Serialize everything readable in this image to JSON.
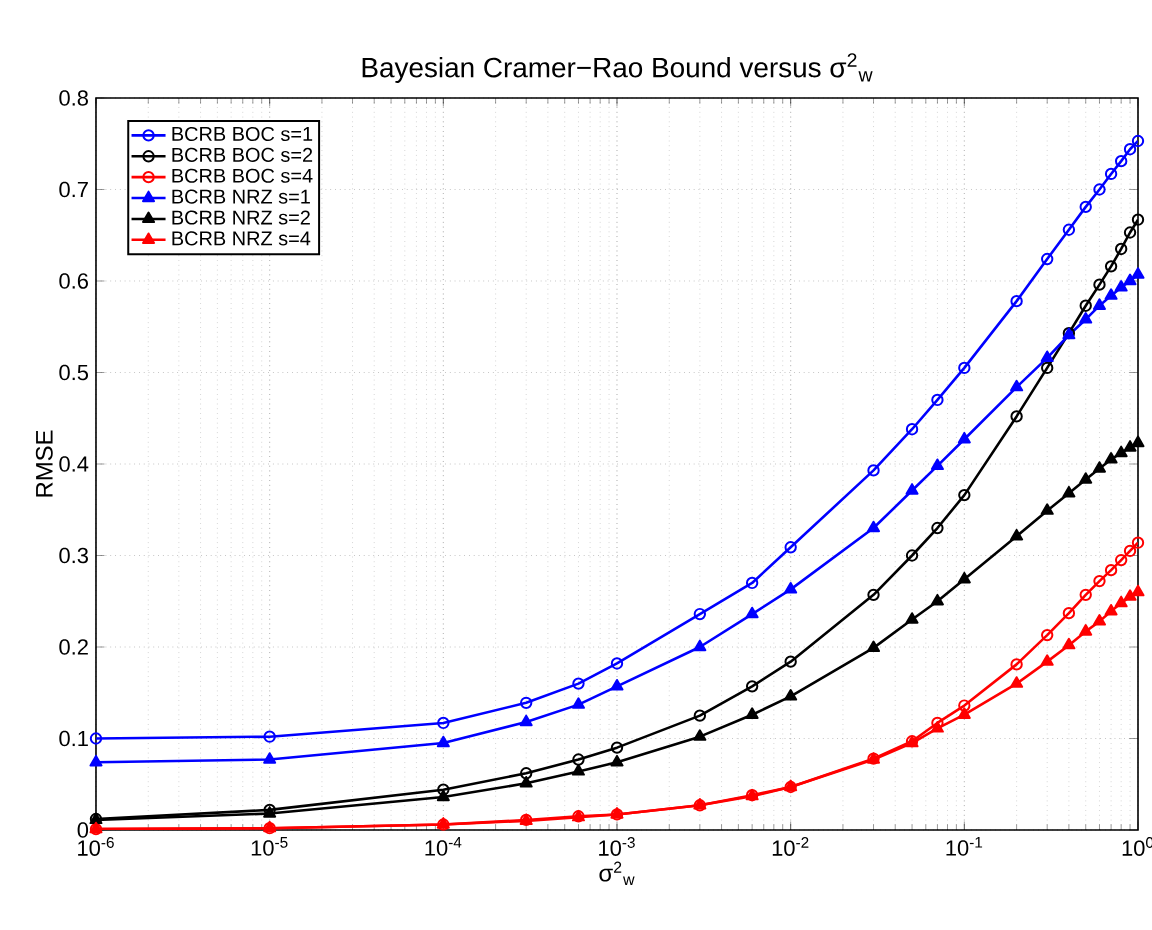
{
  "chart_data": {
    "type": "line",
    "title": "Bayesian Cramer−Rao Bound versus σ$^{2}$$_{w}$",
    "xlabel": "σ$^{2}$$_{w}$",
    "ylabel": "RMSE",
    "x": [
      1e-06,
      1e-05,
      0.0001,
      0.0003,
      0.0006,
      0.001,
      0.003,
      0.006,
      0.01,
      0.03,
      0.05,
      0.07,
      0.1,
      0.2,
      0.3,
      0.4,
      0.5,
      0.6,
      0.7,
      0.8,
      0.9,
      1.0
    ],
    "log": "x",
    "xlim": [
      1e-06,
      1
    ],
    "ylim": [
      0,
      0.8
    ],
    "xticks": [
      {
        "value": 1e-06,
        "label": "10$^{-6}$"
      },
      {
        "value": 1e-05,
        "label": "10$^{-5}$"
      },
      {
        "value": 0.0001,
        "label": "10$^{-4}$"
      },
      {
        "value": 0.001,
        "label": "10$^{-3}$"
      },
      {
        "value": 0.01,
        "label": "10$^{-2}$"
      },
      {
        "value": 0.1,
        "label": "10$^{-1}$"
      },
      {
        "value": 1,
        "label": "10$^{0}$"
      }
    ],
    "yticks": [
      0,
      0.1,
      0.2,
      0.3,
      0.4,
      0.5,
      0.6,
      0.7,
      0.8
    ],
    "grid": true,
    "legend": "top left",
    "line_style": "solid",
    "series": [
      {
        "name": "BCRB BOC s=1",
        "color": "#0000ff",
        "marker": "circle",
        "values": [
          0.1,
          0.102,
          0.117,
          0.139,
          0.16,
          0.182,
          0.236,
          0.27,
          0.309,
          0.393,
          0.438,
          0.47,
          0.505,
          0.578,
          0.624,
          0.656,
          0.681,
          0.7,
          0.717,
          0.731,
          0.744,
          0.753
        ]
      },
      {
        "name": "BCRB BOC s=2",
        "color": "#000000",
        "marker": "circle",
        "values": [
          0.012,
          0.022,
          0.044,
          0.062,
          0.077,
          0.09,
          0.125,
          0.157,
          0.184,
          0.257,
          0.3,
          0.33,
          0.366,
          0.452,
          0.505,
          0.543,
          0.573,
          0.596,
          0.616,
          0.635,
          0.653,
          0.667
        ]
      },
      {
        "name": "BCRB BOC s=4",
        "color": "#ff0000",
        "marker": "circle",
        "values": [
          0.001,
          0.002,
          0.006,
          0.011,
          0.015,
          0.017,
          0.027,
          0.038,
          0.047,
          0.078,
          0.097,
          0.117,
          0.136,
          0.181,
          0.213,
          0.237,
          0.257,
          0.272,
          0.284,
          0.295,
          0.305,
          0.314
        ]
      },
      {
        "name": "BCRB NRZ s=1",
        "color": "#0000ff",
        "marker": "triangle",
        "values": [
          0.074,
          0.077,
          0.095,
          0.118,
          0.137,
          0.157,
          0.2,
          0.236,
          0.263,
          0.33,
          0.371,
          0.398,
          0.427,
          0.484,
          0.516,
          0.541,
          0.558,
          0.573,
          0.584,
          0.593,
          0.6,
          0.607
        ]
      },
      {
        "name": "BCRB NRZ s=2",
        "color": "#000000",
        "marker": "triangle",
        "values": [
          0.011,
          0.018,
          0.036,
          0.051,
          0.064,
          0.074,
          0.102,
          0.126,
          0.146,
          0.199,
          0.23,
          0.25,
          0.274,
          0.321,
          0.349,
          0.368,
          0.383,
          0.395,
          0.405,
          0.412,
          0.418,
          0.423
        ]
      },
      {
        "name": "BCRB NRZ s=4",
        "color": "#ff0000",
        "marker": "triangle",
        "values": [
          0.001,
          0.002,
          0.006,
          0.01,
          0.014,
          0.017,
          0.027,
          0.037,
          0.047,
          0.077,
          0.095,
          0.111,
          0.126,
          0.16,
          0.184,
          0.202,
          0.217,
          0.228,
          0.239,
          0.248,
          0.255,
          0.26
        ]
      }
    ]
  }
}
